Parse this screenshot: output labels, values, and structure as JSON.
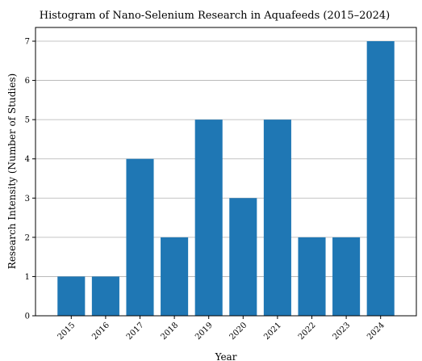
{
  "chart_data": {
    "type": "bar",
    "title": "Histogram of Nano-Selenium Research in Aquafeeds (2015–2024)",
    "xlabel": "Year",
    "ylabel": "Research Intensity (Number of Studies)",
    "categories": [
      "2015",
      "2016",
      "2017",
      "2018",
      "2019",
      "2020",
      "2021",
      "2022",
      "2023",
      "2024"
    ],
    "values": [
      1,
      1,
      4,
      2,
      5,
      3,
      5,
      2,
      2,
      7
    ],
    "ylim": [
      0,
      7.35
    ],
    "yticks": [
      0,
      1,
      2,
      3,
      4,
      5,
      6,
      7
    ],
    "grid": "horizontal",
    "bar_color": "#1f77b4",
    "legend": "none"
  }
}
